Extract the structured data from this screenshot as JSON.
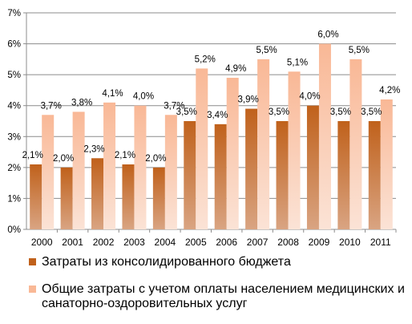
{
  "chart_data": {
    "type": "bar",
    "categories": [
      "2000",
      "2001",
      "2002",
      "2003",
      "2004",
      "2005",
      "2006",
      "2007",
      "2008",
      "2009",
      "2010",
      "2011"
    ],
    "series": [
      {
        "name": "Затраты из консолидированного  бюджета",
        "values": [
          2.1,
          2.0,
          2.3,
          2.1,
          2.0,
          3.5,
          3.4,
          3.9,
          3.5,
          4.0,
          3.5,
          3.5
        ],
        "labels": [
          "2,1%",
          "2,0%",
          "2,3%",
          "2,1%",
          "2,0%",
          "3,5%",
          "3,4%",
          "3,9%",
          "3,5%",
          "4,0%",
          "3,5%",
          "3,5%"
        ],
        "color": "#c0611b"
      },
      {
        "name": "Общие затраты с учетом оплаты населением медицинских и санаторно-оздоровительных услуг",
        "values": [
          3.7,
          3.8,
          4.1,
          4.0,
          3.7,
          5.2,
          4.9,
          5.5,
          5.1,
          6.0,
          5.5,
          4.2
        ],
        "labels": [
          "3,7%",
          "3,8%",
          "4,1%",
          "4,0%",
          "3,7%",
          "5,2%",
          "4,9%",
          "5,5%",
          "5,1%",
          "6,0%",
          "5,5%",
          "4,2%"
        ],
        "color": "#f9b896"
      }
    ],
    "yticks": [
      "0%",
      "1%",
      "2%",
      "3%",
      "4%",
      "5%",
      "6%",
      "7%"
    ],
    "ylim": [
      0,
      7
    ],
    "grid": true,
    "legend_position": "bottom"
  }
}
